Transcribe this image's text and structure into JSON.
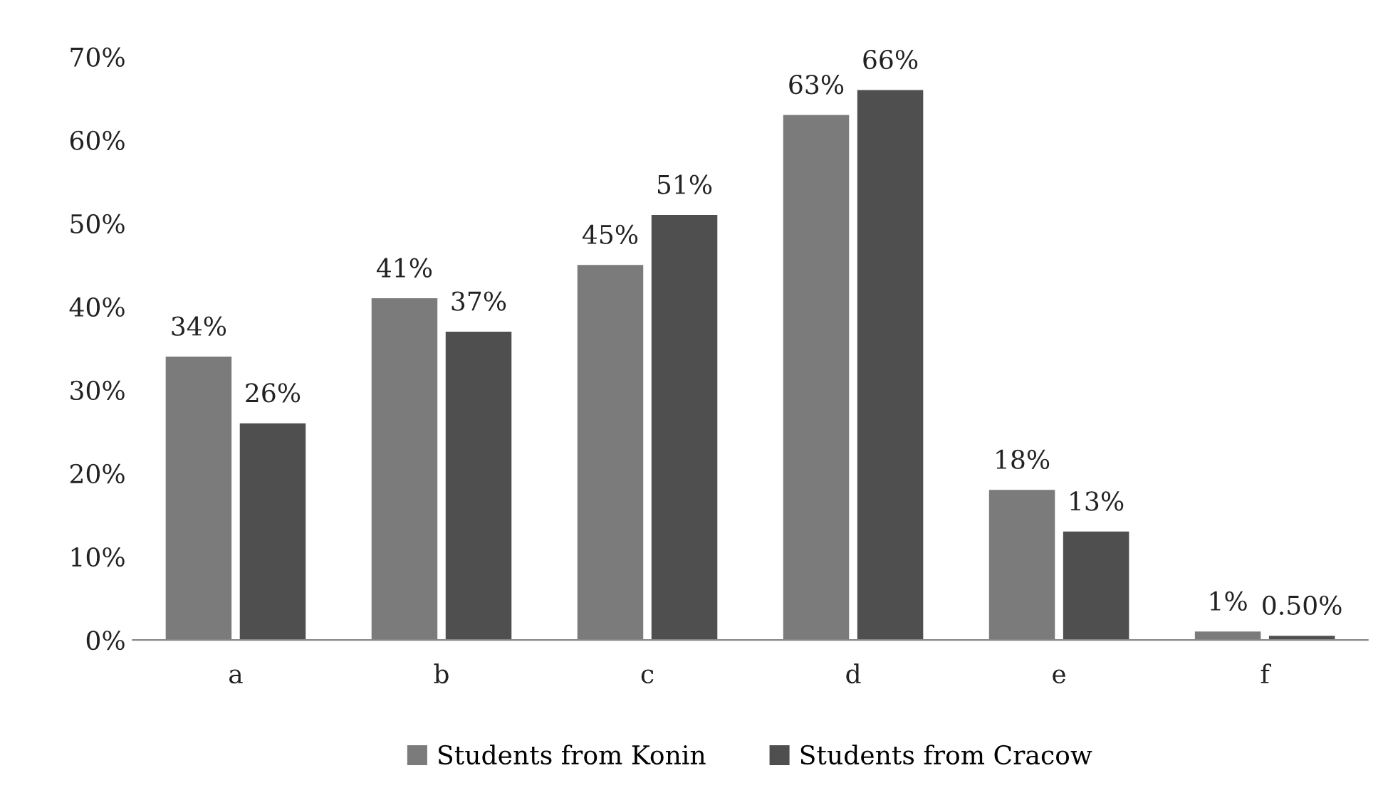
{
  "chart_data": {
    "type": "bar",
    "categories": [
      "a",
      "b",
      "c",
      "d",
      "e",
      "f"
    ],
    "series": [
      {
        "name": "Students from Konin",
        "color": "#7b7b7b",
        "values": [
          34,
          41,
          45,
          63,
          18,
          1
        ],
        "value_labels": [
          "34%",
          "41%",
          "45%",
          "63%",
          "18%",
          "1%"
        ]
      },
      {
        "name": "Students from Cracow",
        "color": "#4f4f4f",
        "values": [
          26,
          37,
          51,
          66,
          13,
          0.5
        ],
        "value_labels": [
          "26%",
          "37%",
          "51%",
          "66%",
          "13%",
          "0.50%"
        ]
      }
    ],
    "ylim": [
      0,
      70
    ],
    "yticks": [
      {
        "value": 0,
        "label": "0%"
      },
      {
        "value": 10,
        "label": "10%"
      },
      {
        "value": 20,
        "label": "20%"
      },
      {
        "value": 30,
        "label": "30%"
      },
      {
        "value": 40,
        "label": "40%"
      },
      {
        "value": 50,
        "label": "50%"
      },
      {
        "value": 60,
        "label": "60%"
      },
      {
        "value": 70,
        "label": "70%"
      }
    ],
    "grid": false,
    "legend": "bottom"
  }
}
